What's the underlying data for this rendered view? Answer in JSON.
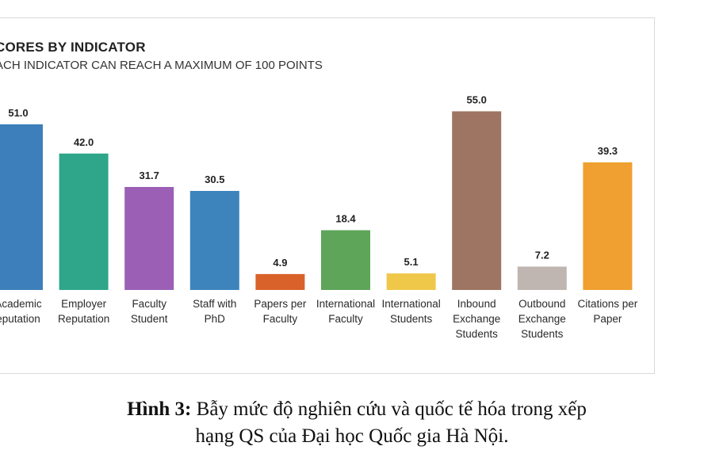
{
  "chart_data": {
    "type": "bar",
    "title": "CORES BY INDICATOR",
    "subtitle": "ACH INDICATOR CAN REACH A MAXIMUM OF 100 POINTS",
    "categories": [
      [
        "Academic",
        "eputation"
      ],
      [
        "Employer",
        "Reputation"
      ],
      [
        "Faculty",
        "Student"
      ],
      [
        "Staff with",
        "PhD"
      ],
      [
        "Papers per",
        "Faculty"
      ],
      [
        "International",
        "Faculty"
      ],
      [
        "International",
        "Students"
      ],
      [
        "Inbound",
        "Exchange",
        "Students"
      ],
      [
        "Outbound",
        "Exchange",
        "Students"
      ],
      [
        "Citations per",
        "Paper"
      ]
    ],
    "values": [
      51.0,
      42.0,
      31.7,
      30.5,
      4.9,
      18.4,
      5.1,
      55.0,
      7.2,
      39.3
    ],
    "value_labels": [
      "51.0",
      "42.0",
      "31.7",
      "30.5",
      "4.9",
      "18.4",
      "5.1",
      "55.0",
      "7.2",
      "39.3"
    ],
    "colors": [
      "#3d7fba",
      "#2fa68a",
      "#9b5fb5",
      "#3d84bd",
      "#d9622b",
      "#5ea55a",
      "#efc84a",
      "#9e7462",
      "#bfb6b1",
      "#f0a030"
    ],
    "ylim": [
      0,
      60
    ],
    "grid": false,
    "legend": "none"
  },
  "caption": {
    "label": "Hình 3:",
    "line1": " Bẫy mức độ nghiên cứu và quốc tế hóa trong xếp",
    "line2": "hạng QS của Đại học Quốc gia Hà Nội."
  }
}
